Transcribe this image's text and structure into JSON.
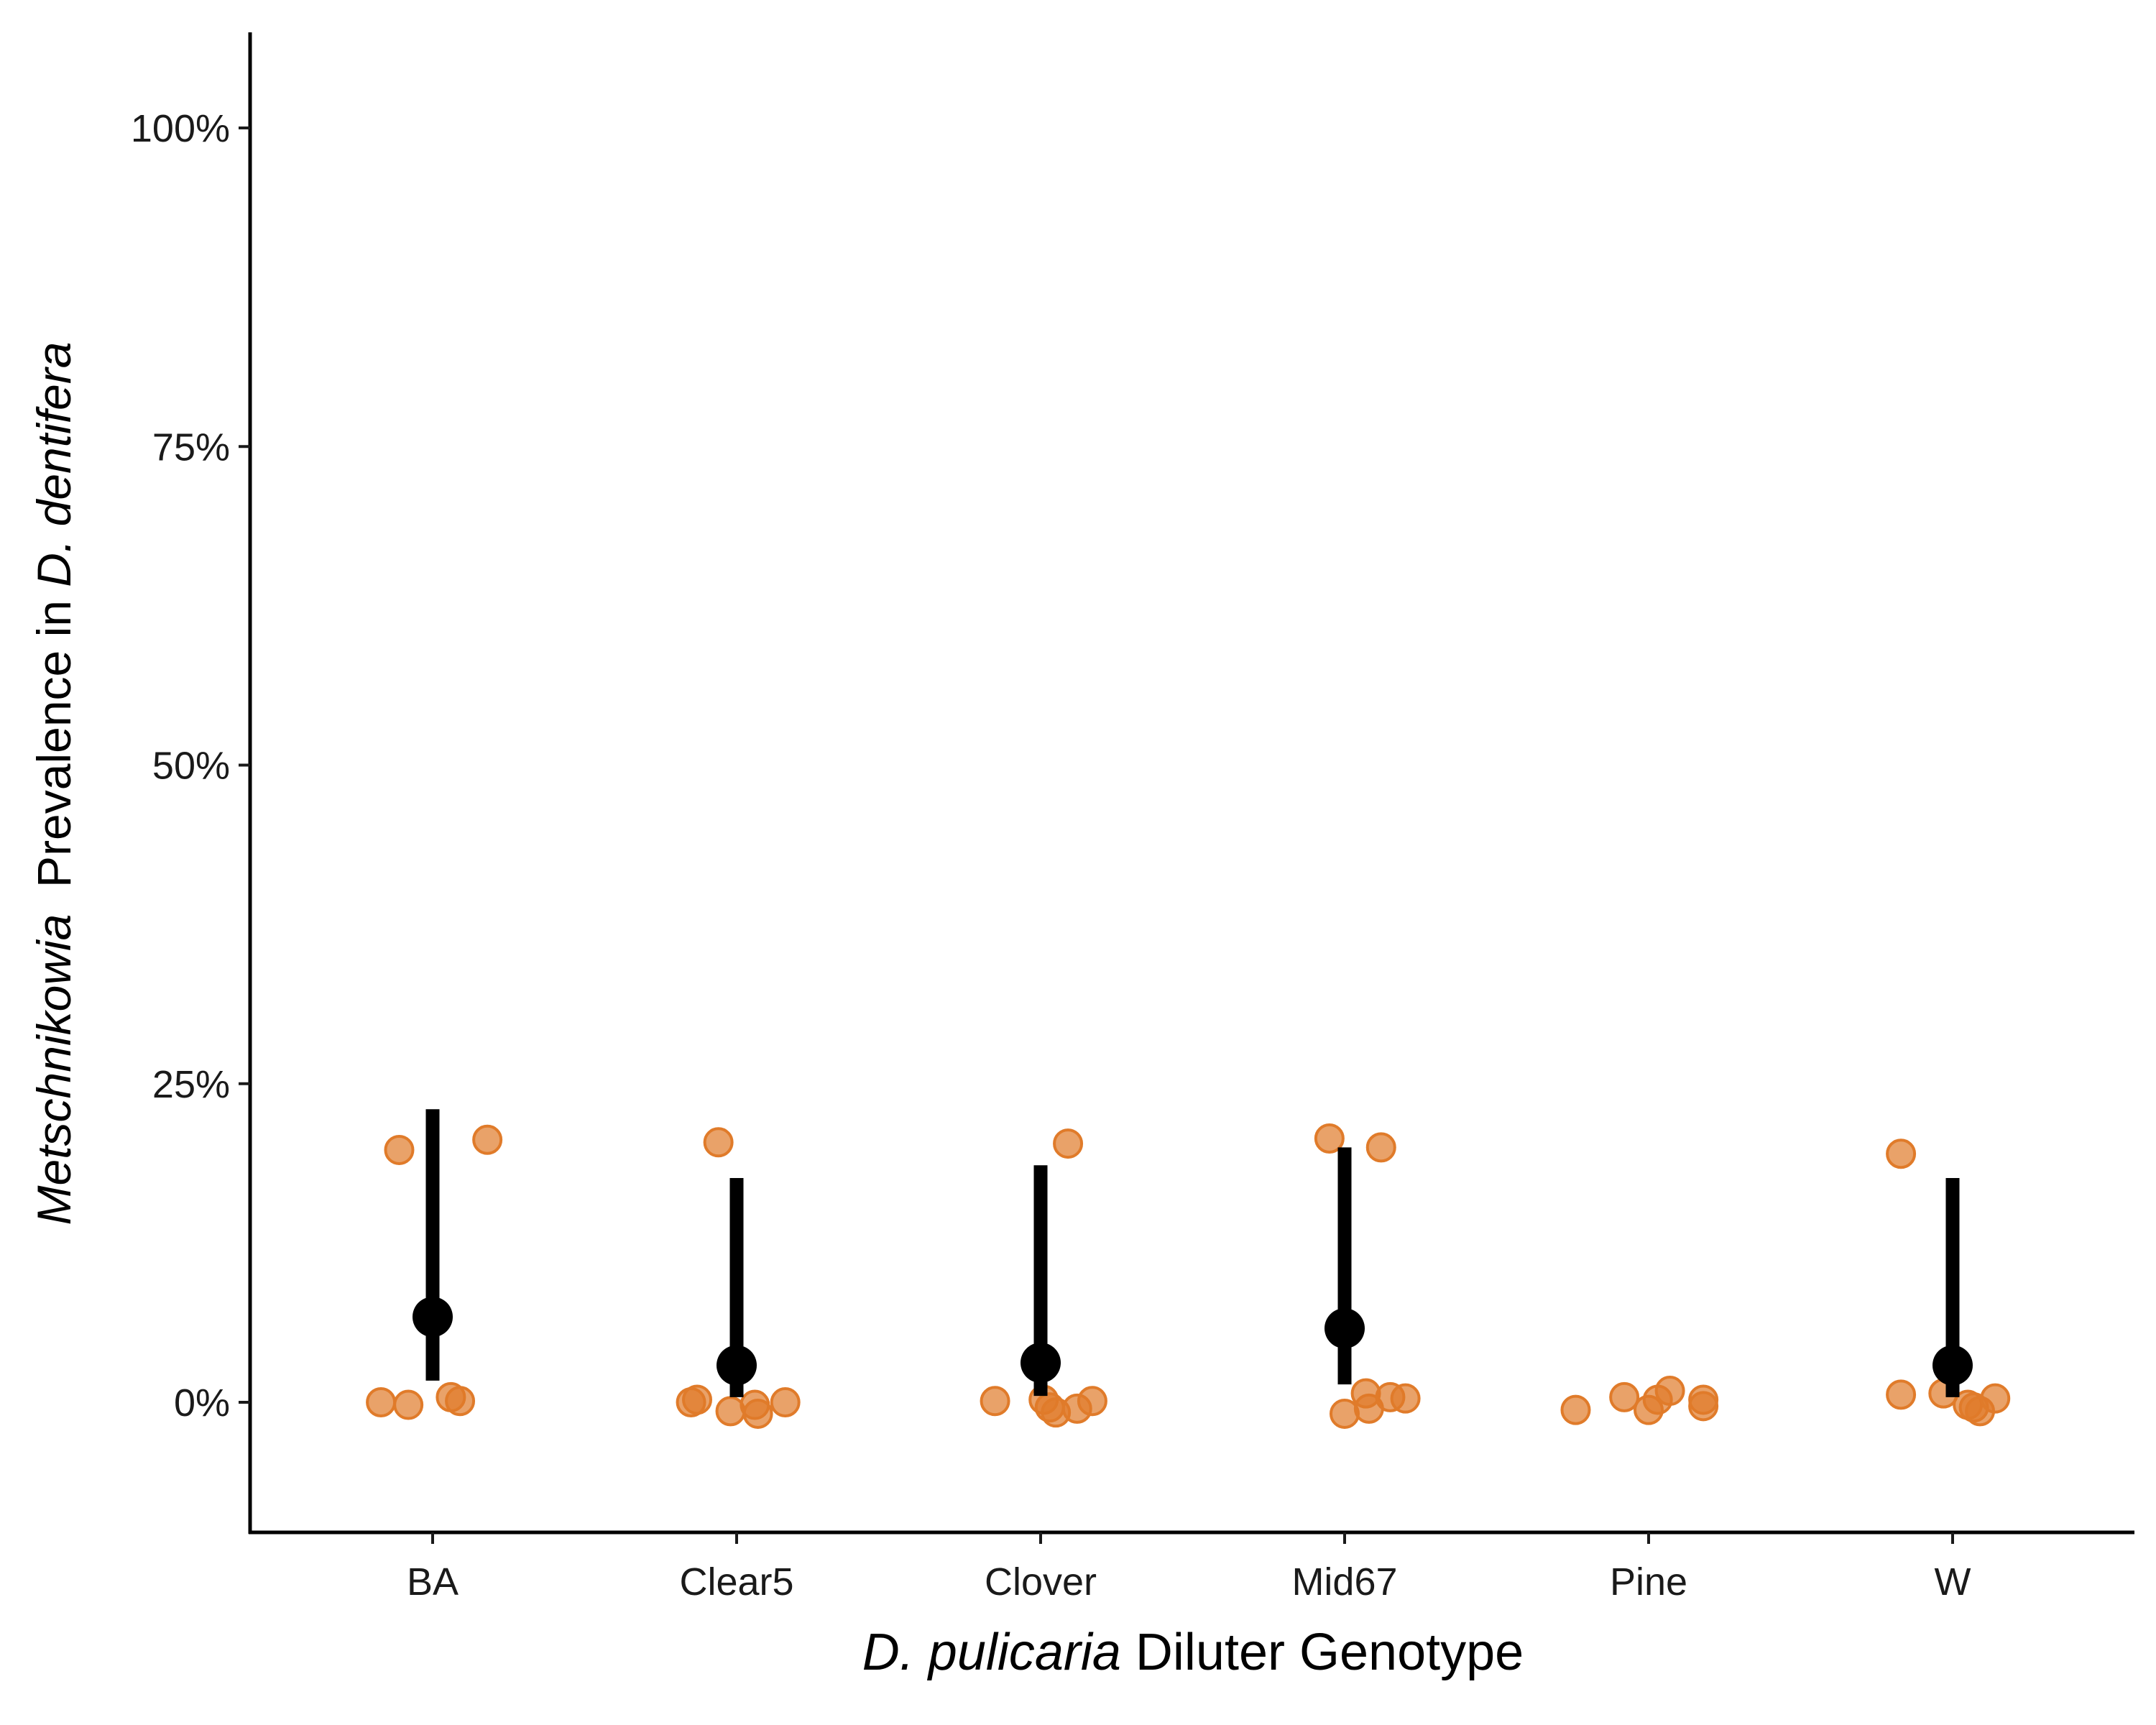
{
  "chart_data": {
    "type": "scatter",
    "xlabel_parts": [
      {
        "text": "D. pulicaria",
        "italic": true
      },
      {
        "text": " Diluter Genotype",
        "italic": false
      }
    ],
    "ylabel_parts": [
      {
        "text": "Metschnikowia",
        "italic": true
      },
      {
        "text": "  Prevalence in ",
        "italic": false
      },
      {
        "text": "D. dentifera",
        "italic": true
      }
    ],
    "categories": [
      "BA",
      "Clear5",
      "Clover",
      "Mid67",
      "Pine",
      "W"
    ],
    "ylim": [
      -0.04,
      1.07
    ],
    "yticks": [
      0,
      0.25,
      0.5,
      0.75,
      1.0
    ],
    "ytick_labels": [
      "0%",
      "25%",
      "50%",
      "75%",
      "100%"
    ],
    "grid": false,
    "series": [
      {
        "kind": "replicate-points",
        "color": "#E07B2A",
        "points": [
          {
            "category": "BA",
            "jitter": -0.17,
            "y": 0.0
          },
          {
            "category": "BA",
            "jitter": -0.08,
            "y": -0.002
          },
          {
            "category": "BA",
            "jitter": 0.06,
            "y": 0.004
          },
          {
            "category": "BA",
            "jitter": 0.09,
            "y": 0.001
          },
          {
            "category": "BA",
            "jitter": -0.11,
            "y": 0.198
          },
          {
            "category": "BA",
            "jitter": 0.18,
            "y": 0.206
          },
          {
            "category": "Clear5",
            "jitter": -0.15,
            "y": 0.0
          },
          {
            "category": "Clear5",
            "jitter": -0.13,
            "y": 0.002
          },
          {
            "category": "Clear5",
            "jitter": -0.02,
            "y": -0.007
          },
          {
            "category": "Clear5",
            "jitter": 0.06,
            "y": -0.002
          },
          {
            "category": "Clear5",
            "jitter": 0.07,
            "y": -0.009
          },
          {
            "category": "Clear5",
            "jitter": 0.16,
            "y": 0.0
          },
          {
            "category": "Clear5",
            "jitter": -0.06,
            "y": 0.204
          },
          {
            "category": "Clover",
            "jitter": -0.15,
            "y": 0.001
          },
          {
            "category": "Clover",
            "jitter": 0.01,
            "y": 0.002
          },
          {
            "category": "Clover",
            "jitter": 0.03,
            "y": -0.004
          },
          {
            "category": "Clover",
            "jitter": 0.05,
            "y": -0.008
          },
          {
            "category": "Clover",
            "jitter": 0.12,
            "y": -0.005
          },
          {
            "category": "Clover",
            "jitter": 0.17,
            "y": 0.001
          },
          {
            "category": "Clover",
            "jitter": 0.09,
            "y": 0.203
          },
          {
            "category": "Mid67",
            "jitter": 0.0,
            "y": -0.009
          },
          {
            "category": "Mid67",
            "jitter": 0.08,
            "y": -0.005
          },
          {
            "category": "Mid67",
            "jitter": 0.07,
            "y": 0.007
          },
          {
            "category": "Mid67",
            "jitter": 0.15,
            "y": 0.004
          },
          {
            "category": "Mid67",
            "jitter": 0.2,
            "y": 0.003
          },
          {
            "category": "Mid67",
            "jitter": -0.05,
            "y": 0.207
          },
          {
            "category": "Mid67",
            "jitter": 0.12,
            "y": 0.2
          },
          {
            "category": "Pine",
            "jitter": -0.24,
            "y": -0.006
          },
          {
            "category": "Pine",
            "jitter": -0.08,
            "y": 0.004
          },
          {
            "category": "Pine",
            "jitter": 0.0,
            "y": -0.006
          },
          {
            "category": "Pine",
            "jitter": 0.03,
            "y": 0.002
          },
          {
            "category": "Pine",
            "jitter": 0.07,
            "y": 0.009
          },
          {
            "category": "Pine",
            "jitter": 0.18,
            "y": 0.002
          },
          {
            "category": "Pine",
            "jitter": 0.18,
            "y": -0.003
          },
          {
            "category": "W",
            "jitter": -0.17,
            "y": 0.006
          },
          {
            "category": "W",
            "jitter": -0.03,
            "y": 0.007
          },
          {
            "category": "W",
            "jitter": 0.05,
            "y": -0.002
          },
          {
            "category": "W",
            "jitter": 0.07,
            "y": -0.004
          },
          {
            "category": "W",
            "jitter": 0.09,
            "y": -0.007
          },
          {
            "category": "W",
            "jitter": 0.14,
            "y": 0.003
          },
          {
            "category": "W",
            "jitter": -0.17,
            "y": 0.195
          }
        ]
      },
      {
        "kind": "estimate-with-interval",
        "color": "#000000",
        "values": [
          {
            "category": "BA",
            "y": 0.067,
            "lo": 0.017,
            "hi": 0.23
          },
          {
            "category": "Clear5",
            "y": 0.029,
            "lo": 0.004,
            "hi": 0.176
          },
          {
            "category": "Clover",
            "y": 0.031,
            "lo": 0.005,
            "hi": 0.186
          },
          {
            "category": "Mid67",
            "y": 0.058,
            "lo": 0.014,
            "hi": 0.2
          },
          {
            "category": "W",
            "y": 0.029,
            "lo": 0.004,
            "hi": 0.176
          }
        ]
      }
    ]
  }
}
